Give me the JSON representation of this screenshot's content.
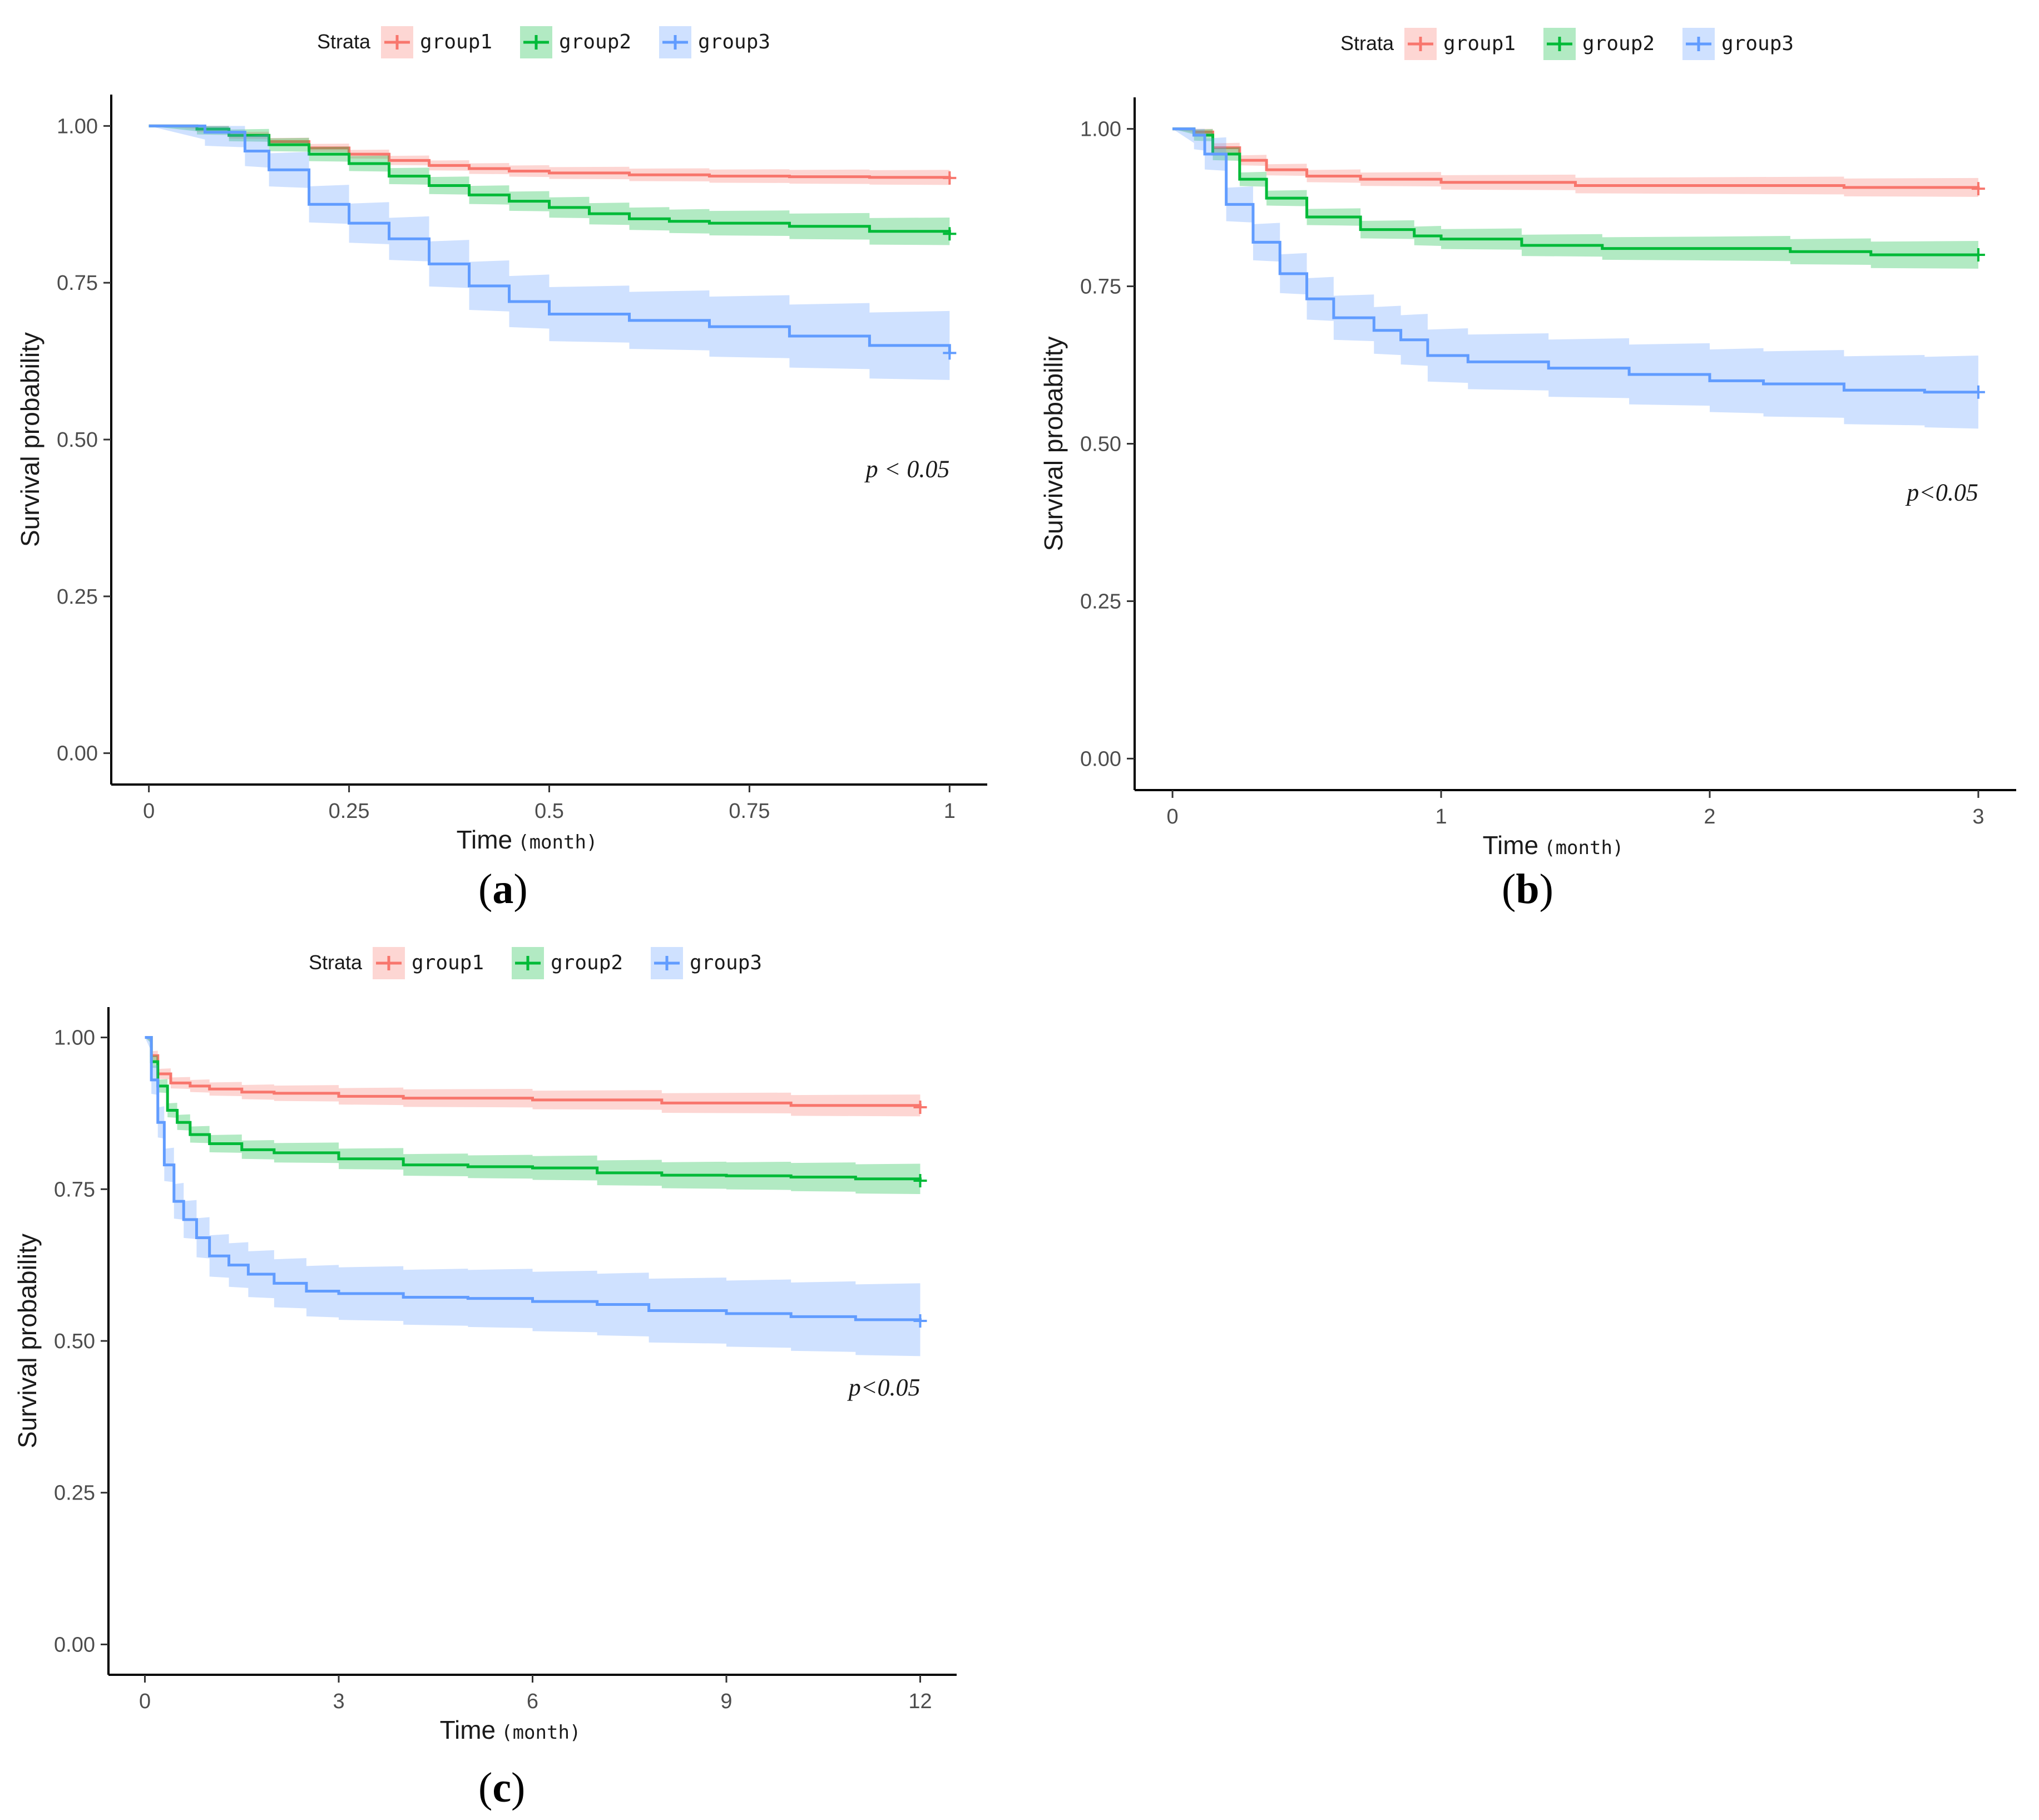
{
  "panel_labels": [
    "a",
    "b",
    "c"
  ],
  "colors": {
    "group1_line": "#f8766d",
    "group2_line": "#00ba38",
    "group3_line": "#619cff",
    "group1_band": "#f8766d",
    "group2_band": "#00ba38",
    "group3_band": "#619cff",
    "axis": "#000000",
    "tick_text": "#4d4d4d"
  },
  "chart_data": [
    {
      "type": "line",
      "panel": "a",
      "legend": {
        "title": "Strata",
        "entries": [
          "group1",
          "group2",
          "group3"
        ],
        "position": "top"
      },
      "xlabel": "Time",
      "xunit": "(month)",
      "ylabel": "Survival probability",
      "xlim": [
        0,
        1
      ],
      "ylim": [
        0,
        1
      ],
      "xticks": [
        0,
        0.25,
        0.5,
        0.75,
        1
      ],
      "xtick_labels": [
        "0",
        "0.25",
        "0.5",
        "0.75",
        "1"
      ],
      "yticks": [
        0,
        0.25,
        0.5,
        0.75,
        1
      ],
      "ytick_labels": [
        "0.00",
        "0.25",
        "0.50",
        "0.75",
        "1.00"
      ],
      "annotation": "p < 0.05",
      "annotation_pos": [
        1,
        0.44
      ],
      "grid": false,
      "series": [
        {
          "name": "group1",
          "x": [
            0,
            0.06,
            0.1,
            0.15,
            0.2,
            0.25,
            0.3,
            0.35,
            0.4,
            0.45,
            0.5,
            0.6,
            0.7,
            0.8,
            0.9,
            1.0
          ],
          "y": [
            1.0,
            0.995,
            0.985,
            0.975,
            0.965,
            0.955,
            0.945,
            0.937,
            0.932,
            0.928,
            0.925,
            0.922,
            0.92,
            0.919,
            0.918,
            0.917
          ],
          "band": 0.012
        },
        {
          "name": "group2",
          "x": [
            0,
            0.06,
            0.1,
            0.15,
            0.2,
            0.25,
            0.3,
            0.35,
            0.4,
            0.45,
            0.5,
            0.55,
            0.6,
            0.65,
            0.7,
            0.8,
            0.9,
            1.0
          ],
          "y": [
            1.0,
            0.995,
            0.985,
            0.97,
            0.955,
            0.94,
            0.92,
            0.905,
            0.89,
            0.88,
            0.87,
            0.86,
            0.852,
            0.848,
            0.845,
            0.84,
            0.832,
            0.828
          ],
          "band": 0.022
        },
        {
          "name": "group3",
          "x": [
            0,
            0.07,
            0.12,
            0.15,
            0.2,
            0.25,
            0.3,
            0.35,
            0.4,
            0.45,
            0.5,
            0.6,
            0.7,
            0.8,
            0.9,
            1.0
          ],
          "y": [
            1.0,
            0.99,
            0.96,
            0.93,
            0.875,
            0.845,
            0.82,
            0.78,
            0.745,
            0.72,
            0.7,
            0.69,
            0.68,
            0.665,
            0.65,
            0.638
          ],
          "band": 0.055
        }
      ]
    },
    {
      "type": "line",
      "panel": "b",
      "legend": {
        "title": "Strata",
        "entries": [
          "group1",
          "group2",
          "group3"
        ],
        "position": "top"
      },
      "xlabel": "Time",
      "xunit": "(month)",
      "ylabel": "Survival probability",
      "xlim": [
        0,
        3
      ],
      "ylim": [
        0,
        1
      ],
      "xticks": [
        0,
        1,
        2,
        3
      ],
      "xtick_labels": [
        "0",
        "1",
        "2",
        "3"
      ],
      "yticks": [
        0,
        0.25,
        0.5,
        0.75,
        1
      ],
      "ytick_labels": [
        "0.00",
        "0.25",
        "0.50",
        "0.75",
        "1.00"
      ],
      "annotation": "p<0.05",
      "annotation_pos": [
        3,
        0.41
      ],
      "grid": false,
      "series": [
        {
          "name": "group1",
          "x": [
            0,
            0.08,
            0.15,
            0.25,
            0.35,
            0.5,
            0.7,
            1.0,
            1.5,
            2.0,
            2.5,
            3.0
          ],
          "y": [
            1.0,
            0.995,
            0.97,
            0.95,
            0.935,
            0.925,
            0.92,
            0.915,
            0.91,
            0.91,
            0.907,
            0.905
          ],
          "band": 0.015
        },
        {
          "name": "group2",
          "x": [
            0,
            0.08,
            0.15,
            0.25,
            0.35,
            0.5,
            0.7,
            0.9,
            1.0,
            1.3,
            1.6,
            2.0,
            2.3,
            2.6,
            3.0
          ],
          "y": [
            1.0,
            0.99,
            0.96,
            0.92,
            0.89,
            0.86,
            0.84,
            0.83,
            0.825,
            0.815,
            0.81,
            0.81,
            0.805,
            0.8,
            0.8
          ],
          "band": 0.022
        },
        {
          "name": "group3",
          "x": [
            0,
            0.08,
            0.12,
            0.2,
            0.3,
            0.4,
            0.5,
            0.6,
            0.75,
            0.85,
            0.95,
            1.1,
            1.4,
            1.7,
            2.0,
            2.2,
            2.5,
            2.8,
            3.0
          ],
          "y": [
            1.0,
            0.99,
            0.96,
            0.88,
            0.82,
            0.77,
            0.73,
            0.7,
            0.68,
            0.665,
            0.64,
            0.63,
            0.62,
            0.61,
            0.6,
            0.595,
            0.585,
            0.582,
            0.582
          ],
          "band": 0.058
        }
      ]
    },
    {
      "type": "line",
      "panel": "c",
      "legend": {
        "title": "Strata",
        "entries": [
          "group1",
          "group2",
          "group3"
        ],
        "position": "top"
      },
      "xlabel": "Time",
      "xunit": "(month)",
      "ylabel": "Survival probability",
      "xlim": [
        0,
        12
      ],
      "ylim": [
        0,
        1
      ],
      "xticks": [
        0,
        3,
        6,
        9,
        12
      ],
      "xtick_labels": [
        "0",
        "3",
        "6",
        "9",
        "12"
      ],
      "yticks": [
        0,
        0.25,
        0.5,
        0.75,
        1
      ],
      "ytick_labels": [
        "0.00",
        "0.25",
        "0.50",
        "0.75",
        "1.00"
      ],
      "annotation": "p<0.05",
      "annotation_pos": [
        12,
        0.41
      ],
      "grid": false,
      "series": [
        {
          "name": "group1",
          "x": [
            0,
            0.1,
            0.2,
            0.4,
            0.7,
            1.0,
            1.5,
            2.0,
            3.0,
            4.0,
            6.0,
            8.0,
            10.0,
            12.0
          ],
          "y": [
            1.0,
            0.97,
            0.94,
            0.925,
            0.92,
            0.915,
            0.91,
            0.908,
            0.903,
            0.9,
            0.897,
            0.892,
            0.888,
            0.885
          ],
          "band": 0.018
        },
        {
          "name": "group2",
          "x": [
            0,
            0.1,
            0.2,
            0.35,
            0.5,
            0.7,
            1.0,
            1.5,
            2.0,
            3.0,
            4.0,
            5.0,
            6.0,
            7.0,
            8.0,
            9.0,
            10.0,
            11.0,
            12.0
          ],
          "y": [
            1.0,
            0.96,
            0.92,
            0.88,
            0.86,
            0.84,
            0.825,
            0.815,
            0.81,
            0.8,
            0.79,
            0.787,
            0.785,
            0.777,
            0.773,
            0.772,
            0.77,
            0.767,
            0.764
          ],
          "band": 0.025
        },
        {
          "name": "group3",
          "x": [
            0,
            0.1,
            0.2,
            0.3,
            0.45,
            0.6,
            0.8,
            1.0,
            1.3,
            1.6,
            2.0,
            2.5,
            3.0,
            4.0,
            5.0,
            6.0,
            7.0,
            7.8,
            9.0,
            10.0,
            11.0,
            12.0
          ],
          "y": [
            1.0,
            0.93,
            0.86,
            0.79,
            0.73,
            0.7,
            0.67,
            0.64,
            0.625,
            0.61,
            0.595,
            0.582,
            0.578,
            0.572,
            0.57,
            0.565,
            0.56,
            0.55,
            0.545,
            0.54,
            0.535,
            0.533
          ],
          "band": 0.06
        }
      ]
    }
  ]
}
